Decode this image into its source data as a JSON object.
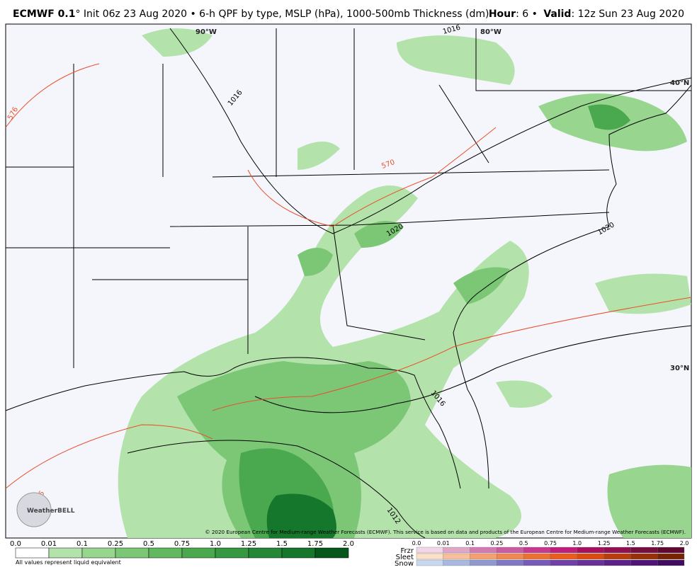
{
  "header": {
    "title_bold": "ECMWF 0.1",
    "title_rest": "° Init 06z 23 Aug 2020 • 6-h QPF by type, MSLP (hPa), 1000-500mb Thickness (dm)",
    "hour_label": "Hour",
    "hour_value": ": 6 •",
    "valid_label": "Valid",
    "valid_value": ": 12z Sun 23 Aug 2020"
  },
  "map": {
    "grid_labels": [
      "90°W",
      "80°W",
      "40°N",
      "30°N"
    ],
    "contour_labels": [
      "1016",
      "576",
      "570",
      "1020",
      "1020",
      "1016",
      "1012",
      "576",
      "1016"
    ],
    "copyright": "© 2020 European Centre for Medium-range Weather Forecasts (ECMWF). This service is based on data and products of the European Centre for Medium-range Weather Forecasts (ECMWF).",
    "logo": "WeatherBELL"
  },
  "legend": {
    "rain": {
      "labels": [
        "0.0",
        "0.01",
        "0.1",
        "0.25",
        "0.5",
        "0.75",
        "1.0",
        "1.25",
        "1.5",
        "1.75",
        "2.0"
      ],
      "colors": [
        "#ffffff",
        "#b4e2ab",
        "#98d58e",
        "#7cc776",
        "#62b860",
        "#4aa84e",
        "#369841",
        "#248836",
        "#14772b",
        "#05571b"
      ],
      "note": "All values represent liquid equivalent"
    },
    "mixed": {
      "labels": [
        "0.0",
        "0.01",
        "0.1",
        "0.25",
        "0.5",
        "0.75",
        "1.0",
        "1.25",
        "1.5",
        "1.75",
        "2.0"
      ],
      "rows": [
        {
          "name": "Frzr",
          "colors": [
            "#f0d6e6",
            "#e0a6c8",
            "#d47ab2",
            "#cc5aa0",
            "#c8388e",
            "#c01e7a",
            "#a8105e",
            "#901050",
            "#780c40",
            "#600830"
          ]
        },
        {
          "name": "Sleet",
          "colors": [
            "#fce0c8",
            "#f8c09a",
            "#f4a070",
            "#f08850",
            "#ec7030",
            "#e85c1c",
            "#d84c10",
            "#b83c0c",
            "#983008",
            "#782404"
          ]
        },
        {
          "name": "Snow",
          "colors": [
            "#c8d8f0",
            "#a8b8e0",
            "#9098d0",
            "#8078c4",
            "#7858b8",
            "#7040a8",
            "#683098",
            "#5c2088",
            "#501478",
            "#400c60"
          ]
        }
      ]
    }
  }
}
